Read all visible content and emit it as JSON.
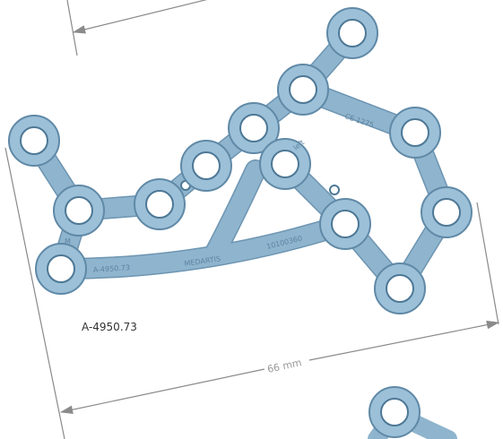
{
  "part_label": "A-4950.73",
  "dimension_label": "66 mm",
  "engravings": {
    "side": "left",
    "certification": "CE 1275",
    "size": "M",
    "part_number": "A-4950.73",
    "brand": "MEDARTIS",
    "lot": "10100360"
  }
}
